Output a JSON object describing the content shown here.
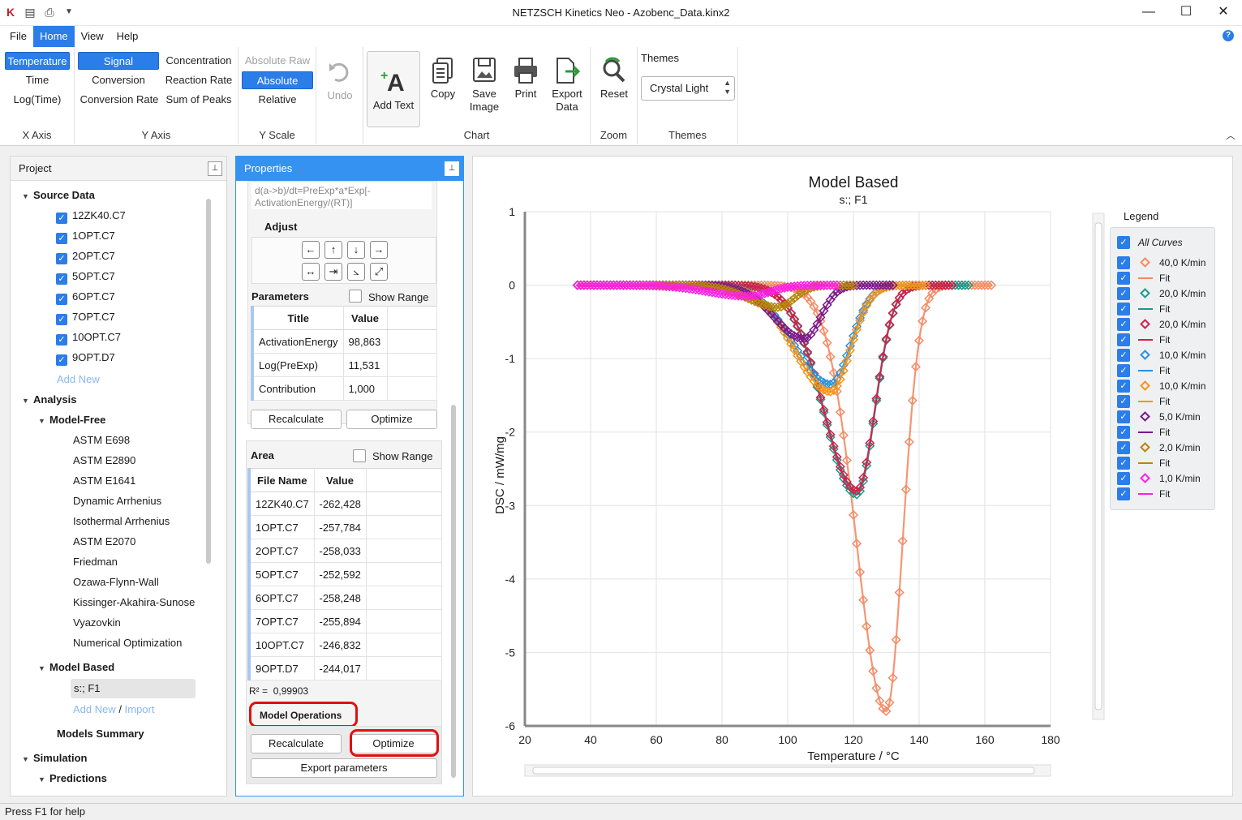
{
  "window": {
    "title": "NETZSCH Kinetics Neo - Azobenc_Data.kinx2"
  },
  "menu": [
    "File",
    "Home",
    "View",
    "Help"
  ],
  "ribbon": {
    "xaxis": {
      "items": [
        "Temperature",
        "Time",
        "Log(Time)"
      ],
      "group": "X Axis"
    },
    "yaxis": {
      "col1": [
        "Signal",
        "Conversion",
        "Conversion Rate"
      ],
      "col2": [
        "Concentration",
        "Reaction Rate",
        "Sum of Peaks"
      ],
      "group": "Y Axis"
    },
    "yscale": {
      "items": [
        "Absolute Raw",
        "Absolute",
        "Relative"
      ],
      "group": "Y Scale"
    },
    "undo": "Undo",
    "chart": {
      "add_text": "Add Text",
      "copy": "Copy",
      "save_image_1": "Save",
      "save_image_2": "Image",
      "print": "Print",
      "export_1": "Export",
      "export_2": "Data",
      "group": "Chart"
    },
    "zoom": {
      "reset": "Reset",
      "group": "Zoom"
    },
    "themes": {
      "label": "Themes",
      "value": "Crystal Light",
      "group": "Themes"
    }
  },
  "project": {
    "title": "Project",
    "source_data": "Source Data",
    "files": [
      "12ZK40.C7",
      "1OPT.C7",
      "2OPT.C7",
      "5OPT.C7",
      "6OPT.C7",
      "7OPT.C7",
      "10OPT.C7",
      "9OPT.D7"
    ],
    "add_new": "Add New",
    "analysis": "Analysis",
    "model_free": "Model-Free",
    "model_free_items": [
      "ASTM E698",
      "ASTM E2890",
      "ASTM E1641",
      "Dynamic Arrhenius",
      "Isothermal Arrhenius",
      "ASTM E2070",
      "Friedman",
      "Ozawa-Flynn-Wall",
      "Kissinger-Akahira-Sunose",
      "Vyazovkin",
      "Numerical Optimization"
    ],
    "model_based": "Model Based",
    "selected_model": "s:; F1",
    "add_new2": "Add New",
    "slash": "/",
    "import": "Import",
    "models_summary": "Models Summary",
    "simulation": "Simulation",
    "predictions": "Predictions"
  },
  "properties": {
    "title": "Properties",
    "equation": "d(a->b)/dt=PreExp*a*Exp[-ActivationEnergy/(RT)]",
    "adjust": "Adjust",
    "parameters": "Parameters",
    "show_range": "Show Range",
    "param_headers": [
      "Title",
      "Value"
    ],
    "params": [
      {
        "title": "ActivationEnergy",
        "value": "98,863"
      },
      {
        "title": "Log(PreExp)",
        "value": "11,531"
      },
      {
        "title": "Contribution",
        "value": "1,000"
      }
    ],
    "recalculate": "Recalculate",
    "optimize": "Optimize",
    "area": "Area",
    "area_show_range": "Show Range",
    "area_headers": [
      "File Name",
      "Value"
    ],
    "areas": [
      {
        "file": "12ZK40.C7",
        "value": "-262,428"
      },
      {
        "file": "1OPT.C7",
        "value": "-257,784"
      },
      {
        "file": "2OPT.C7",
        "value": "-258,033"
      },
      {
        "file": "5OPT.C7",
        "value": "-252,592"
      },
      {
        "file": "6OPT.C7",
        "value": "-258,248"
      },
      {
        "file": "7OPT.C7",
        "value": "-255,894"
      },
      {
        "file": "10OPT.C7",
        "value": "-246,832"
      },
      {
        "file": "9OPT.D7",
        "value": "-244,017"
      }
    ],
    "r2_label": "R² =",
    "r2_value": "0,99903",
    "model_operations": "Model Operations",
    "recalculate2": "Recalculate",
    "optimize2": "Optimize",
    "export_parameters": "Export parameters"
  },
  "chart_data": {
    "type": "line",
    "title": "Model Based",
    "subtitle": "s:; F1",
    "xlabel": "Temperature / °C",
    "ylabel": "DSC / mW/mg",
    "xlim": [
      20,
      180
    ],
    "ylim": [
      -6,
      1
    ],
    "xticks": [
      "20",
      "40",
      "60",
      "80",
      "100",
      "120",
      "140",
      "160",
      "180"
    ],
    "yticks": [
      "1",
      "0",
      "-1",
      "-2",
      "-3",
      "-4",
      "-5",
      "-6"
    ],
    "grid": true,
    "legend_position": "right",
    "series": [
      {
        "name": "40,0 K/min",
        "color": "#f58a64",
        "peak_x": 130,
        "peak_y": -5.8,
        "start": 36,
        "end": 162,
        "width": 9
      },
      {
        "name": "20,0 K/min",
        "color": "#1a9a8a",
        "peak_x": 121,
        "peak_y": -2.85,
        "start": 36,
        "end": 155,
        "width": 10
      },
      {
        "name": "20,0 K/min",
        "color": "#d0204a",
        "peak_x": 121,
        "peak_y": -2.8,
        "start": 36,
        "end": 150,
        "width": 10
      },
      {
        "name": "10,0 K/min",
        "color": "#2a90e0",
        "peak_x": 113,
        "peak_y": -1.35,
        "start": 36,
        "end": 140,
        "width": 11
      },
      {
        "name": "10,0 K/min",
        "color": "#f59418",
        "peak_x": 113,
        "peak_y": -1.45,
        "start": 36,
        "end": 142,
        "width": 11
      },
      {
        "name": "5,0 K/min",
        "color": "#7a1a8a",
        "peak_x": 105,
        "peak_y": -0.73,
        "start": 36,
        "end": 132,
        "width": 9
      },
      {
        "name": "2,0 K/min",
        "color": "#b8860b",
        "peak_x": 97,
        "peak_y": -0.3,
        "start": 36,
        "end": 120,
        "width": 9
      },
      {
        "name": "1,0 K/min",
        "color": "#ff1ee6",
        "peak_x": 88,
        "peak_y": -0.15,
        "start": 36,
        "end": 115,
        "width": 12
      }
    ]
  },
  "legend": {
    "title": "Legend",
    "all": "All Curves",
    "fit": "Fit",
    "entries": [
      "40,0 K/min",
      "20,0 K/min",
      "20,0 K/min",
      "10,0 K/min",
      "10,0 K/min",
      "5,0 K/min",
      "2,0 K/min",
      "1,0 K/min"
    ],
    "colors": [
      "#f58a64",
      "#1a9a8a",
      "#d0204a",
      "#2a90e0",
      "#f59418",
      "#7a1a8a",
      "#b8860b",
      "#ff1ee6"
    ]
  },
  "status": "Press F1 for help"
}
